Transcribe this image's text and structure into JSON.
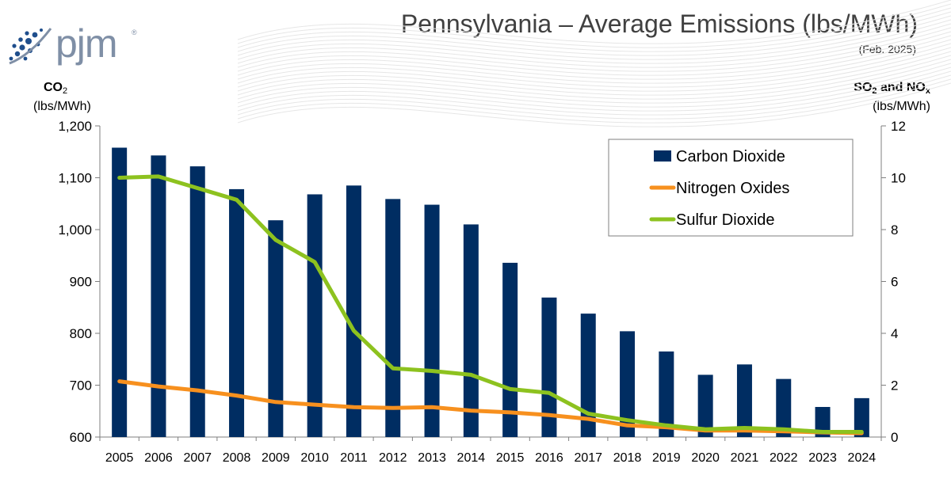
{
  "logo": {
    "wordmark": "pjm",
    "registered": "®"
  },
  "header": {
    "title": "Pennsylvania – Average Emissions (lbs/MWh)",
    "subtitle": "(Feb. 2025)"
  },
  "axes": {
    "left": {
      "name_main": "CO",
      "name_sub": "2",
      "unit": "(lbs/MWh)"
    },
    "right": {
      "name_a": "SO",
      "name_a_sub": "2",
      "name_join": " and NO",
      "name_b_sub": "x",
      "unit": "(lbs/MWh)"
    }
  },
  "colors": {
    "co2": "#002d62",
    "nox": "#f7901e",
    "so2": "#8dc21f",
    "axis": "#7f7f7f",
    "text": "#404040"
  },
  "chart_data": {
    "type": "bar",
    "title": "Pennsylvania – Average Emissions (lbs/MWh)",
    "categories": [
      "2005",
      "2006",
      "2007",
      "2008",
      "2009",
      "2010",
      "2011",
      "2012",
      "2013",
      "2014",
      "2015",
      "2016",
      "2017",
      "2018",
      "2019",
      "2020",
      "2021",
      "2022",
      "2023",
      "2024"
    ],
    "series": [
      {
        "name": "Carbon Dioxide",
        "type": "bar",
        "axis": "left",
        "values": [
          1158,
          1143,
          1122,
          1078,
          1018,
          1068,
          1085,
          1059,
          1048,
          1010,
          936,
          869,
          838,
          804,
          765,
          720,
          740,
          712,
          658,
          675
        ]
      },
      {
        "name": "Nitrogen Oxides",
        "type": "line",
        "axis": "right",
        "values": [
          2.15,
          1.95,
          1.8,
          1.6,
          1.35,
          1.25,
          1.15,
          1.12,
          1.15,
          1.02,
          0.95,
          0.85,
          0.7,
          0.45,
          0.38,
          0.25,
          0.25,
          0.22,
          0.18,
          0.15
        ]
      },
      {
        "name": "Sulfur Dioxide",
        "type": "line",
        "axis": "right",
        "values": [
          10.0,
          10.05,
          9.6,
          9.15,
          7.6,
          6.75,
          4.1,
          2.65,
          2.55,
          2.4,
          1.85,
          1.7,
          0.9,
          0.65,
          0.45,
          0.3,
          0.35,
          0.3,
          0.2,
          0.2
        ]
      }
    ],
    "y_left": {
      "min": 600,
      "max": 1200,
      "step": 100,
      "tick_labels": [
        "600",
        "700",
        "800",
        "900",
        "1,000",
        "1,100",
        "1,200"
      ]
    },
    "y_right": {
      "min": 0,
      "max": 12,
      "step": 2,
      "tick_labels": [
        "0",
        "2",
        "4",
        "6",
        "8",
        "10",
        "12"
      ]
    },
    "legend_position": "top-right"
  }
}
